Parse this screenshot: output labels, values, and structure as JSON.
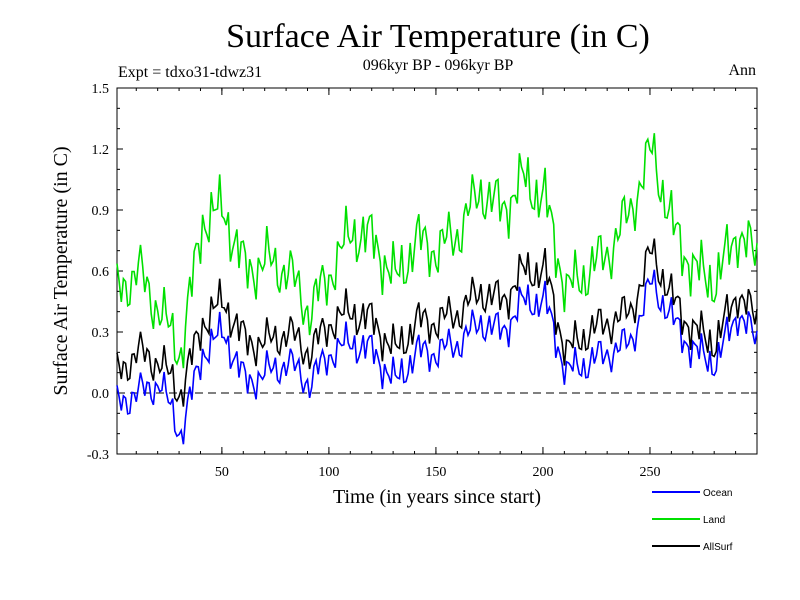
{
  "chart_data": {
    "type": "line",
    "title": "Surface Air Temperature (in C)",
    "subtitle": "096kyr BP - 096kyr BP",
    "experiment_label": "Expt = tdxo31-tdwz31",
    "season_label": "Ann",
    "xlabel": "Time (in years since start)",
    "ylabel": "Surface Air Temperature (in C)",
    "xlim": [
      1,
      300
    ],
    "ylim": [
      -0.3,
      1.5
    ],
    "x_ticks": [
      50,
      100,
      150,
      200,
      250
    ],
    "x_tick_labels": [
      "50",
      "100",
      "150",
      "200",
      "250"
    ],
    "y_ticks": [
      -0.3,
      0.0,
      0.3,
      0.6,
      0.9,
      1.2,
      1.5
    ],
    "y_tick_labels": [
      "-0.3",
      "0.0",
      "0.3",
      "0.6",
      "0.9",
      "1.2",
      "1.5"
    ],
    "reference_line": {
      "y": 0.0,
      "style": "dashed"
    },
    "legend_position": "bottom-right",
    "series": [
      {
        "name": "Ocean",
        "color": "#0000ff",
        "x": [
          1,
          11,
          21,
          31,
          41,
          51,
          61,
          71,
          81,
          91,
          101,
          111,
          121,
          131,
          141,
          151,
          161,
          171,
          181,
          191,
          201,
          211,
          221,
          231,
          241,
          251,
          261,
          271,
          281,
          291,
          300
        ],
        "values": [
          -0.05,
          0.0,
          0.05,
          -0.2,
          0.2,
          0.3,
          0.05,
          0.1,
          0.15,
          0.05,
          0.2,
          0.25,
          0.2,
          0.05,
          0.2,
          0.2,
          0.25,
          0.35,
          0.3,
          0.45,
          0.45,
          0.1,
          0.15,
          0.2,
          0.25,
          0.55,
          0.35,
          0.2,
          0.15,
          0.4,
          0.25
        ]
      },
      {
        "name": "Land",
        "color": "#00e000",
        "x": [
          1,
          11,
          21,
          31,
          41,
          51,
          61,
          71,
          81,
          91,
          101,
          111,
          121,
          131,
          141,
          151,
          161,
          171,
          181,
          191,
          201,
          211,
          221,
          231,
          241,
          251,
          261,
          271,
          281,
          291,
          300
        ],
        "values": [
          0.5,
          0.6,
          0.4,
          0.2,
          0.85,
          0.9,
          0.6,
          0.65,
          0.6,
          0.4,
          0.6,
          0.8,
          0.75,
          0.55,
          0.75,
          0.7,
          0.8,
          1.0,
          0.9,
          1.05,
          0.95,
          0.5,
          0.6,
          0.7,
          0.9,
          1.2,
          0.8,
          0.6,
          0.55,
          0.8,
          0.65
        ]
      },
      {
        "name": "AllSurf",
        "color": "#000000",
        "x": [
          1,
          11,
          21,
          31,
          41,
          51,
          61,
          71,
          81,
          91,
          101,
          111,
          121,
          131,
          141,
          151,
          161,
          171,
          181,
          191,
          201,
          211,
          221,
          231,
          241,
          251,
          261,
          271,
          281,
          291,
          300
        ],
        "values": [
          0.1,
          0.2,
          0.15,
          0.0,
          0.35,
          0.45,
          0.25,
          0.25,
          0.3,
          0.2,
          0.35,
          0.4,
          0.35,
          0.2,
          0.35,
          0.35,
          0.4,
          0.5,
          0.45,
          0.6,
          0.6,
          0.2,
          0.3,
          0.35,
          0.4,
          0.7,
          0.45,
          0.3,
          0.25,
          0.5,
          0.35
        ]
      }
    ]
  }
}
